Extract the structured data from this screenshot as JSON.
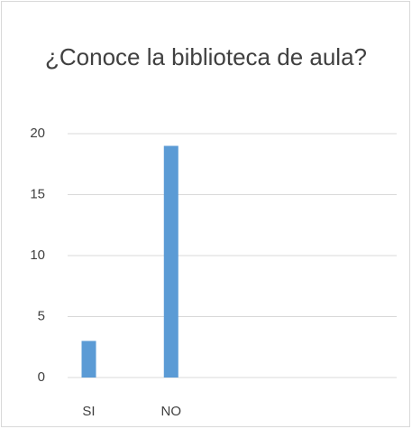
{
  "chart_data": {
    "type": "bar",
    "title": "¿Conoce la biblioteca de aula?",
    "categories": [
      "SI",
      "NO",
      null,
      null
    ],
    "values": [
      3,
      19,
      null,
      null
    ],
    "color": "#5b9bd5",
    "ylim": [
      0,
      20
    ],
    "yticks": [
      0,
      5,
      10,
      15,
      20
    ],
    "grid": true
  }
}
